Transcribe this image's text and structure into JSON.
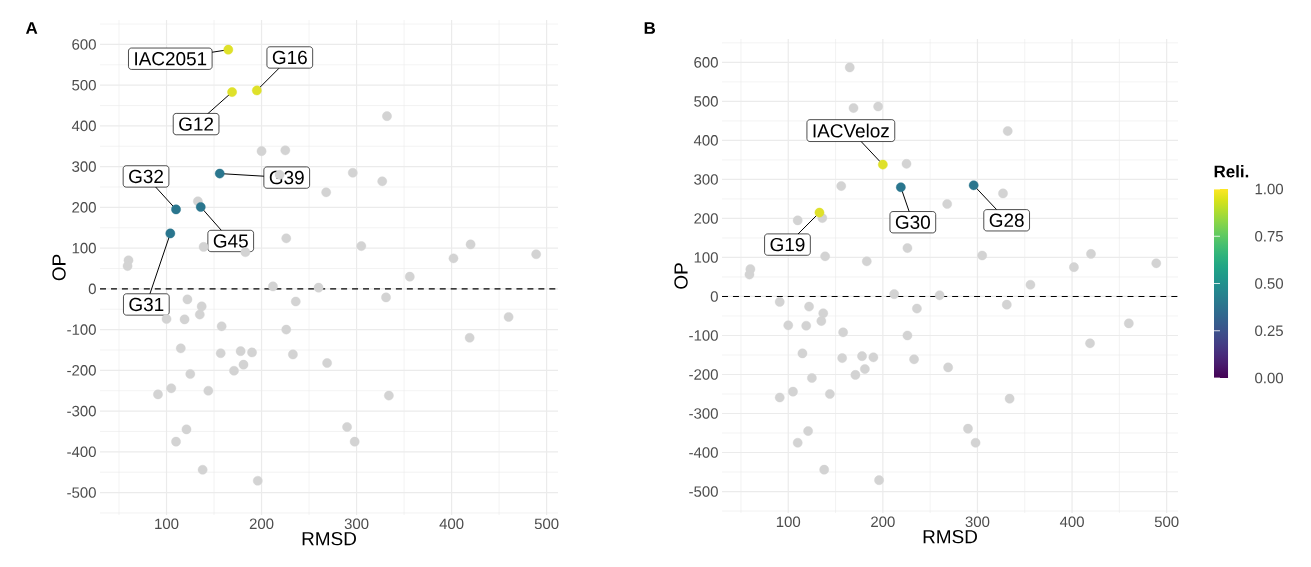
{
  "chart_data": [
    {
      "type": "scatter",
      "title": "A",
      "xlabel": "RMSD",
      "ylabel": "OP",
      "xlim": [
        30,
        512
      ],
      "ylim": [
        -555,
        660
      ],
      "xticks": [
        100,
        200,
        300,
        400,
        500
      ],
      "yticks": [
        -500,
        -400,
        -300,
        -200,
        -100,
        0,
        100,
        200,
        300,
        400,
        500,
        600
      ],
      "grid": true,
      "ref_lines": [
        {
          "axis": "y",
          "value": 0,
          "line_style": "dashed",
          "color": "#000000"
        }
      ],
      "series": [
        {
          "color": "#d3d3d3",
          "x": [
            200,
            225,
            219,
            268,
            133,
            139,
            183,
            226,
            60,
            59,
            212,
            260,
            122,
            137,
            135,
            100,
            119,
            158,
            236,
            226,
            115,
            157,
            178,
            190,
            181,
            171,
            233,
            269,
            125,
            105,
            91,
            144,
            121,
            110,
            138,
            196,
            332,
            296,
            327,
            305,
            402,
            420,
            489,
            356,
            331,
            460,
            419,
            334,
            290,
            298
          ],
          "values": [
            338,
            340,
            280,
            237,
            215,
            103,
            90,
            124,
            70,
            56,
            6,
            3,
            -26,
            -43,
            -63,
            -74,
            -75,
            -92,
            -31,
            -100,
            -146,
            -158,
            -153,
            -156,
            -186,
            -201,
            -161,
            -182,
            -209,
            -244,
            -259,
            -250,
            -345,
            -375,
            -444,
            -471,
            424,
            285,
            264,
            105,
            75,
            109,
            85,
            30,
            -21,
            -69,
            -120,
            -262,
            -339,
            -375
          ]
        },
        {
          "x": [
            165,
            195,
            169,
            110,
            156,
            136,
            104
          ],
          "values": [
            587,
            487,
            483,
            195,
            283,
            201,
            136
          ],
          "colors": [
            "#dfe12a",
            "#dfe12a",
            "#dfe12a",
            "#2a768e",
            "#2a768e",
            "#2a768e",
            "#2a768e"
          ]
        }
      ],
      "annotations": [
        {
          "text": "IAC2051",
          "x": 165,
          "y": 587
        },
        {
          "text": "G16",
          "x": 195,
          "y": 487
        },
        {
          "text": "G12",
          "x": 169,
          "y": 483
        },
        {
          "text": "G32",
          "x": 110,
          "y": 195
        },
        {
          "text": "G39",
          "x": 156,
          "y": 283
        },
        {
          "text": "G45",
          "x": 136,
          "y": 201
        },
        {
          "text": "G31",
          "x": 104,
          "y": 136
        }
      ]
    },
    {
      "type": "scatter",
      "title": "B",
      "xlabel": "RMSD",
      "ylabel": "OP",
      "xlim": [
        30,
        512
      ],
      "ylim": [
        -555,
        660
      ],
      "xticks": [
        100,
        200,
        300,
        400,
        500
      ],
      "yticks": [
        -500,
        -400,
        -300,
        -200,
        -100,
        0,
        100,
        200,
        300,
        400,
        500,
        600
      ],
      "grid": true,
      "clim": [
        0,
        1
      ],
      "clabel": "Reli.",
      "cticks": [
        {
          "value": 0,
          "label": "0.00"
        },
        {
          "value": 0.25,
          "label": "0.25"
        },
        {
          "value": 0.5,
          "label": "0.50"
        },
        {
          "value": 0.75,
          "label": "0.75"
        },
        {
          "value": 1,
          "label": "1.00"
        }
      ],
      "ref_lines": [
        {
          "axis": "y",
          "value": 0,
          "line_style": "dashed",
          "color": "#000000"
        }
      ],
      "series": [
        {
          "color": "#d3d3d3",
          "x": [
            165,
            169,
            195,
            225,
            156,
            268,
            110,
            136,
            139,
            183,
            226,
            60,
            59,
            212,
            260,
            91,
            122,
            137,
            135,
            100,
            119,
            158,
            236,
            226,
            115,
            157,
            178,
            190,
            181,
            171,
            233,
            269,
            125,
            105,
            91,
            144,
            121,
            110,
            138,
            196,
            332,
            327,
            305,
            402,
            420,
            489,
            356,
            331,
            460,
            419,
            334,
            290,
            298
          ],
          "values": [
            587,
            483,
            487,
            340,
            283,
            237,
            195,
            201,
            103,
            90,
            124,
            70,
            56,
            6,
            3,
            -14,
            -26,
            -43,
            -63,
            -74,
            -75,
            -92,
            -31,
            -100,
            -146,
            -158,
            -153,
            -156,
            -186,
            -201,
            -161,
            -182,
            -209,
            -244,
            -259,
            -250,
            -345,
            -375,
            -444,
            -471,
            424,
            264,
            105,
            75,
            109,
            85,
            30,
            -21,
            -69,
            -120,
            -262,
            -339,
            -375
          ]
        },
        {
          "x": [
            200,
            133,
            219,
            296
          ],
          "values": [
            338,
            215,
            280,
            285
          ],
          "colors": [
            "#dfe12a",
            "#dfe12a",
            "#2a768e",
            "#2a768e"
          ]
        }
      ],
      "annotations": [
        {
          "text": "IACVeloz",
          "x": 200,
          "y": 338
        },
        {
          "text": "G19",
          "x": 133,
          "y": 215
        },
        {
          "text": "G30",
          "x": 219,
          "y": 280
        },
        {
          "text": "G28",
          "x": 296,
          "y": 285
        }
      ]
    }
  ]
}
